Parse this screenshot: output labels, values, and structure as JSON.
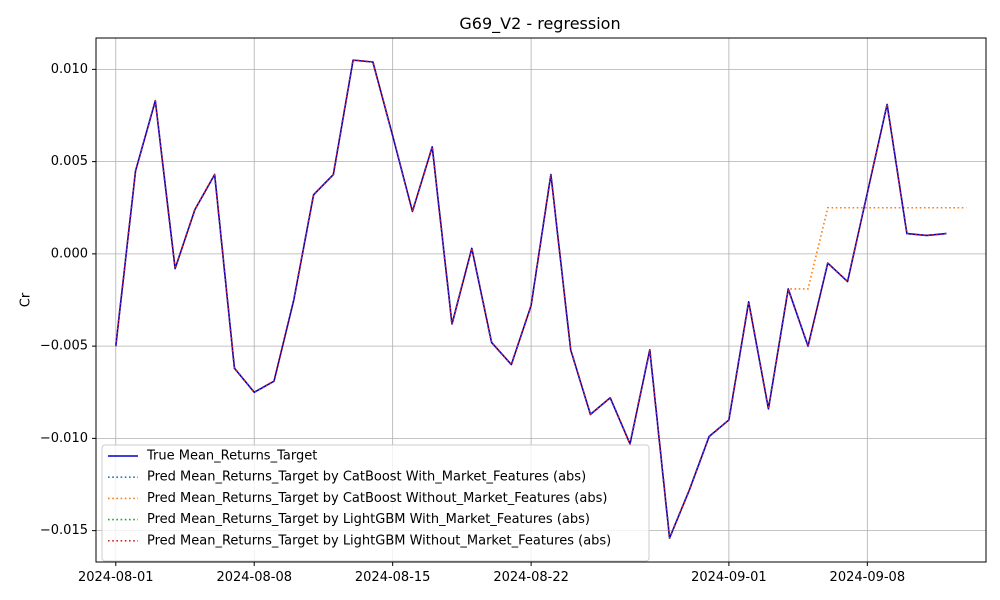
{
  "chart_data": {
    "type": "line",
    "title": "G69_V2 - regression",
    "xlabel": "",
    "ylabel": "Cr",
    "x_axis_type": "date",
    "xlim": [
      "2024-07-31",
      "2024-09-14"
    ],
    "ylim": [
      -0.0167,
      0.0117
    ],
    "x_ticks": [
      "2024-08-01",
      "2024-08-08",
      "2024-08-15",
      "2024-08-22",
      "2024-09-01",
      "2024-09-08"
    ],
    "y_ticks": [
      0.01,
      0.005,
      0.0,
      -0.005,
      -0.01,
      -0.015
    ],
    "y_tick_labels": [
      "0.010",
      "0.005",
      "0.000",
      "−0.005",
      "−0.010",
      "−0.015"
    ],
    "grid": true,
    "legend_position": "lower-left",
    "x": [
      "2024-08-01",
      "2024-08-02",
      "2024-08-03",
      "2024-08-04",
      "2024-08-05",
      "2024-08-06",
      "2024-08-07",
      "2024-08-08",
      "2024-08-09",
      "2024-08-10",
      "2024-08-11",
      "2024-08-12",
      "2024-08-13",
      "2024-08-14",
      "2024-08-15",
      "2024-08-16",
      "2024-08-17",
      "2024-08-18",
      "2024-08-19",
      "2024-08-20",
      "2024-08-21",
      "2024-08-22",
      "2024-08-23",
      "2024-08-24",
      "2024-08-25",
      "2024-08-26",
      "2024-08-27",
      "2024-08-28",
      "2024-08-29",
      "2024-08-30",
      "2024-08-31",
      "2024-09-01",
      "2024-09-02",
      "2024-09-03",
      "2024-09-04",
      "2024-09-05",
      "2024-09-06",
      "2024-09-07",
      "2024-09-08",
      "2024-09-09",
      "2024-09-10",
      "2024-09-11",
      "2024-09-12",
      "2024-09-13"
    ],
    "series": [
      {
        "name": "True Mean_Returns_Target",
        "color": "#0000cc",
        "style": "solid",
        "values": [
          -0.005,
          0.0045,
          0.0083,
          -0.0008,
          0.0024,
          0.0043,
          -0.0062,
          -0.0075,
          -0.0069,
          -0.0025,
          0.0032,
          0.0043,
          0.0105,
          0.0104,
          0.0064,
          0.0023,
          0.0058,
          -0.0038,
          0.0003,
          -0.0048,
          -0.006,
          -0.0028,
          0.0043,
          -0.0052,
          -0.0087,
          -0.0078,
          -0.0103,
          -0.0052,
          -0.0154,
          -0.0128,
          -0.0099,
          -0.009,
          -0.0026,
          -0.0084,
          -0.0019,
          -0.005,
          -0.0005,
          -0.0015,
          0.0033,
          0.0081,
          0.0011,
          0.001,
          0.0011,
          null
        ]
      },
      {
        "name": "Pred Mean_Returns_Target by CatBoost With_Market_Features (abs)",
        "color": "#1f77b4",
        "style": "dotted",
        "values": [
          -0.005,
          0.0045,
          0.0083,
          -0.0008,
          0.0024,
          0.0043,
          -0.0062,
          -0.0075,
          -0.0069,
          -0.0025,
          0.0032,
          0.0043,
          0.0105,
          0.0104,
          0.0064,
          0.0023,
          0.0058,
          -0.0038,
          0.0003,
          -0.0048,
          -0.006,
          -0.0028,
          0.0043,
          -0.0052,
          -0.0087,
          -0.0078,
          -0.0103,
          -0.0052,
          -0.0154,
          -0.0128,
          -0.0099,
          -0.009,
          -0.0026,
          -0.0084,
          -0.0019,
          -0.005,
          -0.0005,
          -0.0015,
          0.0033,
          0.0081,
          0.0011,
          0.001,
          0.0011,
          null
        ]
      },
      {
        "name": "Pred Mean_Returns_Target by CatBoost Without_Market_Features (abs)",
        "color": "#ff7f0e",
        "style": "dotted",
        "values": [
          -0.005,
          0.0045,
          0.0083,
          -0.0008,
          0.0024,
          0.0043,
          -0.0062,
          -0.0075,
          -0.0069,
          -0.0025,
          0.0032,
          0.0043,
          0.0105,
          0.0104,
          0.0064,
          0.0023,
          0.0058,
          -0.0038,
          0.0003,
          -0.0048,
          -0.006,
          -0.0028,
          0.0043,
          -0.0052,
          -0.0087,
          -0.0078,
          -0.0103,
          -0.0052,
          -0.0154,
          -0.0128,
          -0.0099,
          -0.009,
          -0.0026,
          -0.0084,
          -0.0019,
          -0.0019,
          0.0025,
          0.0025,
          0.0025,
          0.0025,
          0.0025,
          0.0025,
          0.0025,
          0.0025
        ]
      },
      {
        "name": "Pred Mean_Returns_Target by LightGBM With_Market_Features (abs)",
        "color": "#2ca02c",
        "style": "dotted",
        "values": [
          -0.005,
          0.0045,
          0.0083,
          -0.0008,
          0.0024,
          0.0043,
          -0.0062,
          -0.0075,
          -0.0069,
          -0.0025,
          0.0032,
          0.0043,
          0.0105,
          0.0104,
          0.0064,
          0.0023,
          0.0058,
          -0.0038,
          0.0003,
          -0.0048,
          -0.006,
          -0.0028,
          0.0043,
          -0.0052,
          -0.0087,
          -0.0078,
          -0.0103,
          -0.0052,
          -0.0154,
          -0.0128,
          -0.0099,
          -0.009,
          -0.0026,
          -0.0084,
          -0.0019,
          -0.005,
          -0.0005,
          -0.0015,
          0.0033,
          0.0081,
          0.0011,
          0.001,
          0.0011,
          null
        ]
      },
      {
        "name": "Pred Mean_Returns_Target by LightGBM Without_Market_Features (abs)",
        "color": "#d62728",
        "style": "dotted",
        "values": [
          -0.005,
          0.0045,
          0.0083,
          -0.0008,
          0.0024,
          0.0043,
          -0.0062,
          -0.0075,
          -0.0069,
          -0.0025,
          0.0032,
          0.0043,
          0.0105,
          0.0104,
          0.0064,
          0.0023,
          0.0058,
          -0.0038,
          0.0003,
          -0.0048,
          -0.006,
          -0.0028,
          0.0043,
          -0.0052,
          -0.0087,
          -0.0078,
          -0.0103,
          -0.0052,
          -0.0154,
          -0.0128,
          -0.0099,
          -0.009,
          -0.0026,
          -0.0084,
          -0.0019,
          -0.005,
          -0.0005,
          -0.0015,
          0.0033,
          0.0081,
          0.0011,
          0.001,
          0.0011,
          null
        ]
      }
    ]
  }
}
